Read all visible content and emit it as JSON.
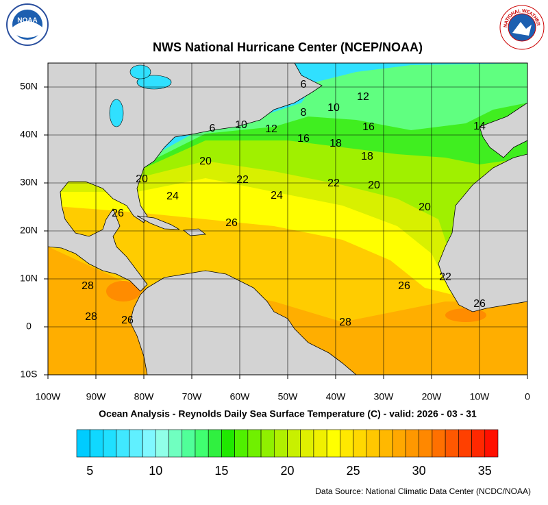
{
  "header": {
    "title": "NWS National Hurricane Center (NCEP/NOAA)",
    "logos": {
      "left": "NOAA",
      "right": "NATIONAL WEATHER SERVICE"
    }
  },
  "map": {
    "xlim": [
      -100,
      0
    ],
    "ylim": [
      -10,
      55
    ],
    "xticks": [
      {
        "value": -100,
        "label": "100W"
      },
      {
        "value": -90,
        "label": "90W"
      },
      {
        "value": -80,
        "label": "80W"
      },
      {
        "value": -70,
        "label": "70W"
      },
      {
        "value": -60,
        "label": "60W"
      },
      {
        "value": -50,
        "label": "50W"
      },
      {
        "value": -40,
        "label": "40W"
      },
      {
        "value": -30,
        "label": "30W"
      },
      {
        "value": -20,
        "label": "20W"
      },
      {
        "value": -10,
        "label": "10W"
      },
      {
        "value": 0,
        "label": "0"
      }
    ],
    "yticks": [
      {
        "value": -10,
        "label": "10S"
      },
      {
        "value": 0,
        "label": "0"
      },
      {
        "value": 10,
        "label": "10N"
      },
      {
        "value": 20,
        "label": "20N"
      },
      {
        "value": 30,
        "label": "30N"
      },
      {
        "value": 40,
        "label": "40N"
      },
      {
        "value": 50,
        "label": "50N"
      }
    ],
    "contour_labels": [
      "6",
      "12",
      "8",
      "10",
      "6",
      "10",
      "12",
      "16",
      "14",
      "16",
      "18",
      "18",
      "20",
      "20",
      "22",
      "22",
      "20",
      "24",
      "24",
      "20",
      "26",
      "26",
      "22",
      "26",
      "28",
      "26",
      "28",
      "26",
      "28"
    ],
    "caption": "Ocean Analysis - Reynolds Daily Sea Surface Temperature (C) - valid: 2026 - 03 - 31"
  },
  "colorbar": {
    "range": [
      4,
      36
    ],
    "colors": [
      "#00ccff",
      "#10d8ff",
      "#20e0ff",
      "#40e8ff",
      "#60f0ff",
      "#80f8ff",
      "#90ffe8",
      "#70ffc0",
      "#50ff99",
      "#40ff70",
      "#30f040",
      "#20e800",
      "#50f000",
      "#70f000",
      "#90f000",
      "#b0f000",
      "#c8f000",
      "#e0f000",
      "#f0f000",
      "#ffff00",
      "#ffe800",
      "#ffd800",
      "#ffc800",
      "#ffb800",
      "#ffa800",
      "#ff9800",
      "#ff8800",
      "#ff7000",
      "#ff5800",
      "#ff4000",
      "#ff2800",
      "#ff1000"
    ],
    "ticks": [
      5,
      10,
      15,
      20,
      25,
      30,
      35
    ]
  },
  "source": "Data Source: National Climatic Data Center (NCDC/NOAA)"
}
